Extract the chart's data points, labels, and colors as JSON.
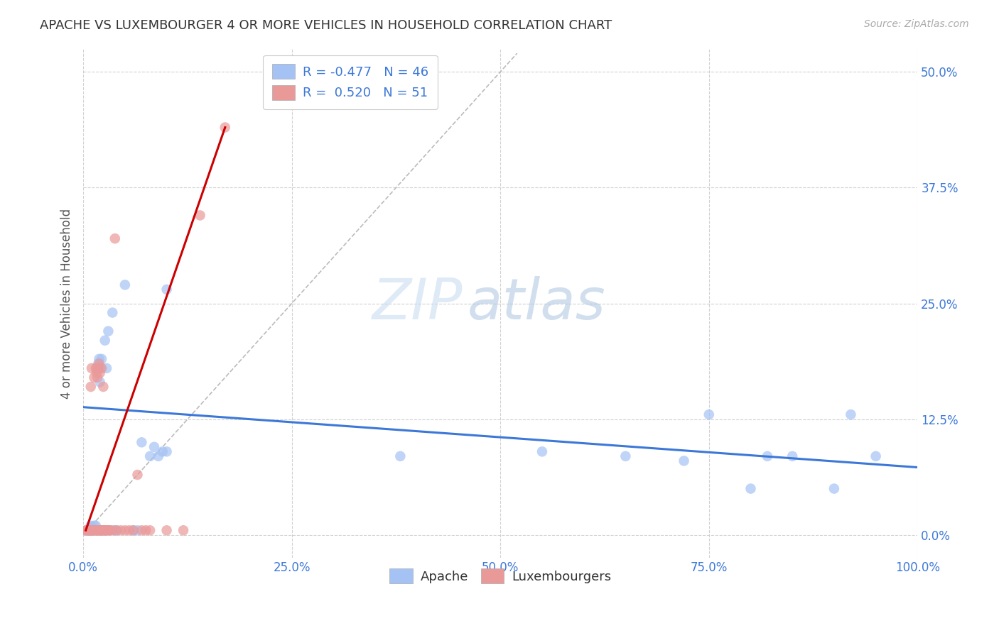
{
  "title": "APACHE VS LUXEMBOURGER 4 OR MORE VEHICLES IN HOUSEHOLD CORRELATION CHART",
  "source": "Source: ZipAtlas.com",
  "ylabel": "4 or more Vehicles in Household",
  "xlim": [
    0.0,
    1.0
  ],
  "ylim": [
    -0.025,
    0.525
  ],
  "xticks": [
    0.0,
    0.25,
    0.5,
    0.75,
    1.0
  ],
  "xticklabels": [
    "0.0%",
    "25.0%",
    "50.0%",
    "75.0%",
    "100.0%"
  ],
  "yticks": [
    0.0,
    0.125,
    0.25,
    0.375,
    0.5
  ],
  "yticklabels": [
    "0.0%",
    "12.5%",
    "25.0%",
    "37.5%",
    "50.0%"
  ],
  "legend_blue_label": "Apache",
  "legend_pink_label": "Luxembourgers",
  "watermark_zip": "ZIP",
  "watermark_atlas": "atlas",
  "blue_color": "#a4c2f4",
  "pink_color": "#ea9999",
  "blue_line_color": "#3c78d8",
  "pink_line_color": "#cc0000",
  "blue_scatter": [
    [
      0.003,
      0.005
    ],
    [
      0.005,
      0.005
    ],
    [
      0.006,
      0.005
    ],
    [
      0.007,
      0.005
    ],
    [
      0.008,
      0.005
    ],
    [
      0.009,
      0.005
    ],
    [
      0.009,
      0.01
    ],
    [
      0.01,
      0.005
    ],
    [
      0.01,
      0.008
    ],
    [
      0.011,
      0.005
    ],
    [
      0.012,
      0.005
    ],
    [
      0.013,
      0.01
    ],
    [
      0.015,
      0.005
    ],
    [
      0.015,
      0.01
    ],
    [
      0.016,
      0.18
    ],
    [
      0.018,
      0.185
    ],
    [
      0.019,
      0.19
    ],
    [
      0.02,
      0.005
    ],
    [
      0.02,
      0.165
    ],
    [
      0.021,
      0.18
    ],
    [
      0.022,
      0.19
    ],
    [
      0.023,
      0.005
    ],
    [
      0.025,
      0.005
    ],
    [
      0.026,
      0.21
    ],
    [
      0.028,
      0.18
    ],
    [
      0.03,
      0.005
    ],
    [
      0.03,
      0.22
    ],
    [
      0.032,
      0.005
    ],
    [
      0.035,
      0.24
    ],
    [
      0.038,
      0.005
    ],
    [
      0.04,
      0.005
    ],
    [
      0.05,
      0.27
    ],
    [
      0.06,
      0.005
    ],
    [
      0.065,
      0.005
    ],
    [
      0.07,
      0.1
    ],
    [
      0.08,
      0.085
    ],
    [
      0.085,
      0.095
    ],
    [
      0.09,
      0.085
    ],
    [
      0.095,
      0.09
    ],
    [
      0.1,
      0.265
    ],
    [
      0.1,
      0.09
    ],
    [
      0.38,
      0.085
    ],
    [
      0.55,
      0.09
    ],
    [
      0.65,
      0.085
    ],
    [
      0.72,
      0.08
    ],
    [
      0.75,
      0.13
    ],
    [
      0.8,
      0.05
    ],
    [
      0.82,
      0.085
    ],
    [
      0.85,
      0.085
    ],
    [
      0.9,
      0.05
    ],
    [
      0.92,
      0.13
    ],
    [
      0.95,
      0.085
    ]
  ],
  "pink_scatter": [
    [
      0.003,
      0.005
    ],
    [
      0.005,
      0.005
    ],
    [
      0.006,
      0.005
    ],
    [
      0.007,
      0.005
    ],
    [
      0.008,
      0.005
    ],
    [
      0.009,
      0.005
    ],
    [
      0.009,
      0.16
    ],
    [
      0.01,
      0.005
    ],
    [
      0.01,
      0.18
    ],
    [
      0.011,
      0.005
    ],
    [
      0.012,
      0.005
    ],
    [
      0.013,
      0.17
    ],
    [
      0.014,
      0.005
    ],
    [
      0.015,
      0.005
    ],
    [
      0.015,
      0.18
    ],
    [
      0.016,
      0.005
    ],
    [
      0.016,
      0.175
    ],
    [
      0.017,
      0.005
    ],
    [
      0.017,
      0.17
    ],
    [
      0.018,
      0.005
    ],
    [
      0.018,
      0.18
    ],
    [
      0.019,
      0.005
    ],
    [
      0.019,
      0.185
    ],
    [
      0.02,
      0.005
    ],
    [
      0.02,
      0.175
    ],
    [
      0.021,
      0.005
    ],
    [
      0.022,
      0.005
    ],
    [
      0.022,
      0.18
    ],
    [
      0.023,
      0.005
    ],
    [
      0.024,
      0.16
    ],
    [
      0.025,
      0.005
    ],
    [
      0.026,
      0.005
    ],
    [
      0.027,
      0.005
    ],
    [
      0.028,
      0.005
    ],
    [
      0.03,
      0.005
    ],
    [
      0.032,
      0.005
    ],
    [
      0.035,
      0.005
    ],
    [
      0.038,
      0.32
    ],
    [
      0.04,
      0.005
    ],
    [
      0.045,
      0.005
    ],
    [
      0.05,
      0.005
    ],
    [
      0.055,
      0.005
    ],
    [
      0.06,
      0.005
    ],
    [
      0.065,
      0.065
    ],
    [
      0.07,
      0.005
    ],
    [
      0.075,
      0.005
    ],
    [
      0.08,
      0.005
    ],
    [
      0.1,
      0.005
    ],
    [
      0.12,
      0.005
    ],
    [
      0.14,
      0.345
    ],
    [
      0.17,
      0.44
    ]
  ],
  "blue_line_x0": 0.0,
  "blue_line_x1": 1.0,
  "blue_line_y0": 0.138,
  "blue_line_y1": 0.073,
  "pink_line_x0": 0.003,
  "pink_line_x1": 0.17,
  "pink_line_y0": 0.005,
  "pink_line_y1": 0.44,
  "diag_line_x0": 0.0,
  "diag_line_x1": 0.52,
  "diag_line_y0": 0.0,
  "diag_line_y1": 0.52
}
